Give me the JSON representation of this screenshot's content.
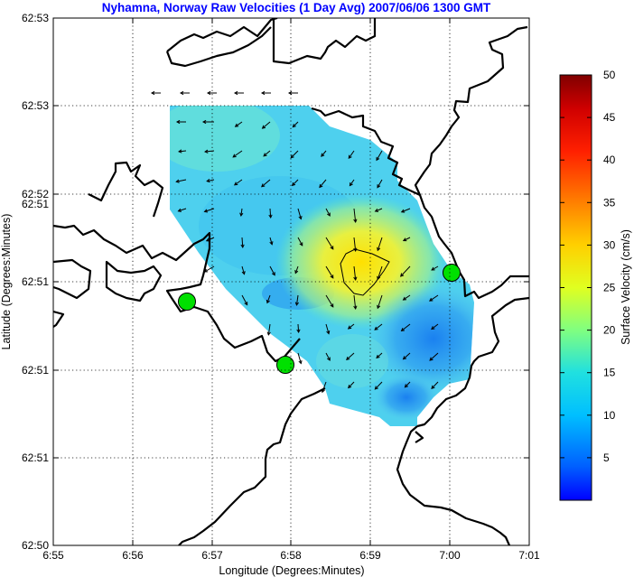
{
  "chart_data": {
    "type": "heatmap",
    "title": "Nyhamna, Norway Raw Velocities (1 Day Avg) 2007/06/06 1300 GMT",
    "xlabel": "Longitude (Degrees:Minutes)",
    "ylabel": "Latitude (Degrees:Minutes)",
    "xticks": [
      "6:55",
      "6:56",
      "6:57",
      "6:58",
      "6:59",
      "7:00",
      "7:01"
    ],
    "yticks": [
      "62:50",
      "62:51",
      "62:51",
      "62:51",
      "62:51",
      "62:52",
      "62:53",
      "62:53"
    ],
    "grid": true,
    "colorbar": {
      "label": "Surface Velocity (cm/s)",
      "range": [
        0,
        50
      ],
      "ticks": [
        5,
        10,
        15,
        20,
        25,
        30,
        35,
        40,
        45,
        50
      ]
    },
    "stations": [
      {
        "lon": 6.945,
        "lat": 62.8488
      },
      {
        "lon": 6.9653,
        "lat": 62.8441
      },
      {
        "lon": 7.0003,
        "lat": 62.8525
      }
    ],
    "contour_value_cm_s": 25,
    "colors": {
      "title": "#0000ff",
      "station": "#00e000",
      "coast": "#000000"
    }
  }
}
